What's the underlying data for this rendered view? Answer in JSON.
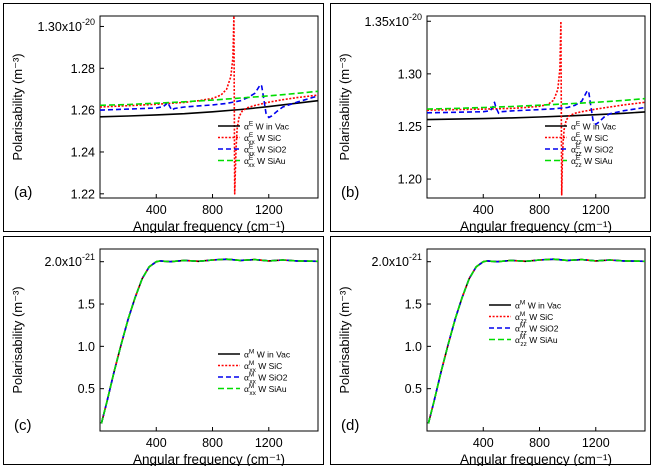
{
  "chart_data": [
    {
      "id": "a",
      "type": "line",
      "panel_label": "(a)",
      "title": "",
      "xlabel": "Angular frequency (cm⁻¹)",
      "ylabel": "Polarisability (m⁻³)",
      "xlim": [
        0,
        1550
      ],
      "ylim": [
        1.218,
        1.305
      ],
      "xticks": [
        400,
        800,
        1200
      ],
      "yticks": [
        {
          "v": 1.22,
          "label": "1.22"
        },
        {
          "v": 1.24,
          "label": "1.24"
        },
        {
          "v": 1.26,
          "label": "1.26"
        },
        {
          "v": 1.28,
          "label": "1.28"
        },
        {
          "v": 1.3,
          "label": "1.30x10",
          "exp": "-20"
        }
      ],
      "legend_position": "lower-right",
      "series": [
        {
          "name": "αᴱ W in Vac",
          "sym": "α",
          "sup": "E",
          "sub": "",
          "rest": " W in Vac",
          "color": "#000000",
          "dash": "",
          "width": 1.6,
          "x": [
            0,
            200,
            400,
            600,
            800,
            1000,
            1200,
            1400,
            1550
          ],
          "y": [
            1.2568,
            1.2572,
            1.2577,
            1.2583,
            1.2592,
            1.2603,
            1.2617,
            1.2633,
            1.2645
          ]
        },
        {
          "name": "αᴱxx W SiC",
          "sym": "α",
          "sup": "E",
          "sub": "xx",
          "rest": " W SiC",
          "color": "#ff0000",
          "dash": "2,1.6",
          "width": 1.6,
          "x": [
            0,
            200,
            400,
            600,
            700,
            800,
            860,
            900,
            930,
            945,
            952,
            958,
            962,
            968,
            975,
            990,
            1010,
            1050,
            1100,
            1200,
            1300,
            1400,
            1550
          ],
          "y": [
            1.2615,
            1.2621,
            1.2628,
            1.2637,
            1.2645,
            1.2656,
            1.2672,
            1.27,
            1.276,
            1.285,
            1.305,
            1.22,
            1.23,
            1.242,
            1.251,
            1.257,
            1.2595,
            1.2612,
            1.2622,
            1.2638,
            1.265,
            1.266,
            1.2672
          ]
        },
        {
          "name": "αᴱxx W SiO2",
          "sym": "α",
          "sup": "E",
          "sub": "xx",
          "rest": " W SiO2",
          "color": "#0000ee",
          "dash": "5,3",
          "width": 1.6,
          "x": [
            0,
            200,
            400,
            450,
            470,
            480,
            490,
            510,
            530,
            600,
            800,
            900,
            1000,
            1050,
            1100,
            1120,
            1140,
            1150,
            1165,
            1180,
            1200,
            1220,
            1260,
            1300,
            1400,
            1550
          ],
          "y": [
            1.26,
            1.2605,
            1.261,
            1.2617,
            1.2628,
            1.2638,
            1.2625,
            1.26,
            1.2608,
            1.2615,
            1.2625,
            1.2632,
            1.2645,
            1.266,
            1.268,
            1.27,
            1.2722,
            1.2715,
            1.265,
            1.2585,
            1.2565,
            1.2572,
            1.2595,
            1.2615,
            1.2638,
            1.2668
          ]
        },
        {
          "name": "αᴱxx W SiAu",
          "sym": "α",
          "sup": "E",
          "sub": "xx",
          "rest": " W SiAu",
          "color": "#00dd00",
          "dash": "6,3",
          "width": 1.6,
          "x": [
            0,
            200,
            400,
            600,
            800,
            1000,
            1200,
            1400,
            1550
          ],
          "y": [
            1.2623,
            1.2627,
            1.2633,
            1.264,
            1.2648,
            1.2658,
            1.2668,
            1.268,
            1.269
          ]
        }
      ]
    },
    {
      "id": "b",
      "type": "line",
      "panel_label": "(b)",
      "title": "",
      "xlabel": "Angular frequency (cm⁻¹)",
      "ylabel": "Polarisability (m⁻³)",
      "xlim": [
        0,
        1550
      ],
      "ylim": [
        1.182,
        1.355
      ],
      "xticks": [
        400,
        800,
        1200
      ],
      "yticks": [
        {
          "v": 1.2,
          "label": "1.20"
        },
        {
          "v": 1.25,
          "label": "1.25"
        },
        {
          "v": 1.3,
          "label": "1.30"
        },
        {
          "v": 1.35,
          "label": "1.35x10",
          "exp": "-20"
        }
      ],
      "legend_position": "lower-right",
      "series": [
        {
          "name": "αᴱ W in Vac",
          "sym": "α",
          "sup": "E",
          "sub": "",
          "rest": " W in Vac",
          "color": "#000000",
          "dash": "",
          "width": 1.6,
          "x": [
            0,
            200,
            400,
            600,
            800,
            1000,
            1200,
            1400,
            1550
          ],
          "y": [
            1.2565,
            1.257,
            1.2575,
            1.2581,
            1.259,
            1.26,
            1.2612,
            1.2625,
            1.2638
          ]
        },
        {
          "name": "αᴱzz W SiC",
          "sym": "α",
          "sup": "E",
          "sub": "zz",
          "rest": " W SiC",
          "color": "#ff0000",
          "dash": "2,1.6",
          "width": 1.6,
          "x": [
            0,
            200,
            400,
            600,
            700,
            800,
            860,
            900,
            930,
            945,
            952,
            958,
            962,
            968,
            975,
            990,
            1010,
            1050,
            1100,
            1200,
            1300,
            1400,
            1550
          ],
          "y": [
            1.2655,
            1.266,
            1.2665,
            1.2672,
            1.268,
            1.2692,
            1.271,
            1.275,
            1.285,
            1.305,
            1.35,
            1.185,
            1.215,
            1.235,
            1.247,
            1.256,
            1.26,
            1.2625,
            1.264,
            1.2665,
            1.2685,
            1.2705,
            1.273
          ]
        },
        {
          "name": "αᴱzz W SiO2",
          "sym": "α",
          "sup": "E",
          "sub": "zz",
          "rest": " W SiO2",
          "color": "#0000ee",
          "dash": "5,3",
          "width": 1.6,
          "x": [
            0,
            200,
            400,
            450,
            470,
            480,
            490,
            510,
            530,
            600,
            800,
            900,
            1000,
            1050,
            1100,
            1120,
            1140,
            1150,
            1165,
            1180,
            1200,
            1220,
            1260,
            1300,
            1400,
            1550
          ],
          "y": [
            1.263,
            1.2635,
            1.264,
            1.265,
            1.269,
            1.273,
            1.268,
            1.2625,
            1.264,
            1.2648,
            1.266,
            1.2668,
            1.268,
            1.27,
            1.274,
            1.279,
            1.284,
            1.283,
            1.269,
            1.256,
            1.252,
            1.254,
            1.259,
            1.262,
            1.265,
            1.268
          ]
        },
        {
          "name": "αᴱzz W SiAu",
          "sym": "α",
          "sup": "E",
          "sub": "zz",
          "rest": " W SiAu",
          "color": "#00dd00",
          "dash": "6,3",
          "width": 1.6,
          "x": [
            0,
            200,
            400,
            600,
            800,
            1000,
            1200,
            1400,
            1550
          ],
          "y": [
            1.2665,
            1.2672,
            1.268,
            1.269,
            1.2702,
            1.2715,
            1.273,
            1.2748,
            1.2765
          ]
        }
      ]
    },
    {
      "id": "c",
      "type": "line",
      "panel_label": "(c)",
      "title": "",
      "xlabel": "Angular frequency (cm⁻¹)",
      "ylabel": "Polarisability (m⁻³)",
      "xlim": [
        0,
        1550
      ],
      "ylim": [
        0.0,
        2.15
      ],
      "xticks": [
        400,
        800,
        1200
      ],
      "yticks": [
        {
          "v": 0.5,
          "label": "0.5"
        },
        {
          "v": 1.0,
          "label": "1.0"
        },
        {
          "v": 1.5,
          "label": "1.5"
        },
        {
          "v": 2.0,
          "label": "2.0x10",
          "exp": "-21"
        }
      ],
      "legend_position": "lower-right",
      "series": [
        {
          "name": "αᴹ W in Vac",
          "sym": "α",
          "sup": "M",
          "sub": "",
          "rest": " W in Vac",
          "color": "#000000",
          "dash": "",
          "width": 1.6,
          "x": [
            10,
            50,
            100,
            150,
            200,
            250,
            300,
            350,
            400,
            430,
            460,
            500,
            600,
            700,
            800,
            900,
            1000,
            1100,
            1200,
            1300,
            1400,
            1550
          ],
          "y": [
            0.09,
            0.35,
            0.7,
            1.02,
            1.32,
            1.58,
            1.8,
            1.94,
            2.0,
            2.01,
            2.005,
            2.0,
            2.015,
            2.005,
            2.02,
            2.03,
            2.015,
            2.025,
            2.01,
            2.02,
            2.01,
            2.005
          ]
        },
        {
          "name": "αᴹxx W SiC",
          "sym": "α",
          "sup": "M",
          "sub": "xx",
          "rest": " W SiC",
          "color": "#ff0000",
          "dash": "2,1.6",
          "width": 1.6,
          "x": [
            10,
            50,
            100,
            150,
            200,
            250,
            300,
            350,
            400,
            430,
            460,
            500,
            600,
            700,
            800,
            900,
            1000,
            1100,
            1200,
            1300,
            1400,
            1550
          ],
          "y": [
            0.09,
            0.35,
            0.7,
            1.02,
            1.32,
            1.58,
            1.8,
            1.94,
            2.0,
            2.01,
            2.005,
            2.0,
            2.015,
            2.005,
            2.02,
            2.03,
            2.015,
            2.025,
            2.01,
            2.02,
            2.01,
            2.005
          ]
        },
        {
          "name": "αᴹxx W SiO2",
          "sym": "α",
          "sup": "M",
          "sub": "xx",
          "rest": " W SiO2",
          "color": "#0000ee",
          "dash": "5,3",
          "width": 1.6,
          "x": [
            10,
            50,
            100,
            150,
            200,
            250,
            300,
            350,
            400,
            430,
            460,
            500,
            600,
            700,
            800,
            900,
            1000,
            1100,
            1200,
            1300,
            1400,
            1550
          ],
          "y": [
            0.09,
            0.35,
            0.7,
            1.02,
            1.32,
            1.58,
            1.8,
            1.94,
            2.0,
            2.01,
            2.005,
            2.0,
            2.015,
            2.005,
            2.02,
            2.03,
            2.015,
            2.025,
            2.01,
            2.02,
            2.01,
            2.005
          ]
        },
        {
          "name": "αᴹxx W SiAu",
          "sym": "α",
          "sup": "M",
          "sub": "xx",
          "rest": " W SiAu",
          "color": "#00dd00",
          "dash": "6,3",
          "width": 1.6,
          "x": [
            10,
            50,
            100,
            150,
            200,
            250,
            300,
            350,
            400,
            430,
            460,
            500,
            600,
            700,
            800,
            900,
            1000,
            1100,
            1200,
            1300,
            1400,
            1550
          ],
          "y": [
            0.09,
            0.35,
            0.7,
            1.02,
            1.32,
            1.58,
            1.8,
            1.94,
            2.0,
            2.01,
            2.005,
            2.0,
            2.015,
            2.005,
            2.02,
            2.03,
            2.015,
            2.025,
            2.01,
            2.02,
            2.01,
            2.005
          ]
        }
      ]
    },
    {
      "id": "d",
      "type": "line",
      "panel_label": "(d)",
      "title": "",
      "xlabel": "Angular frequency (cm⁻¹)",
      "ylabel": "Polarisability (m⁻³)",
      "xlim": [
        0,
        1550
      ],
      "ylim": [
        0.0,
        2.15
      ],
      "xticks": [
        400,
        800,
        1200
      ],
      "yticks": [
        {
          "v": 0.5,
          "label": "0.5"
        },
        {
          "v": 1.0,
          "label": "1.0"
        },
        {
          "v": 1.5,
          "label": "1.5"
        },
        {
          "v": 2.0,
          "label": "2.0x10",
          "exp": "-21"
        }
      ],
      "legend_position": "center-right",
      "series": [
        {
          "name": "αᴹ W in Vac",
          "sym": "α",
          "sup": "M",
          "sub": "",
          "rest": " W in Vac",
          "color": "#000000",
          "dash": "",
          "width": 1.6,
          "x": [
            10,
            50,
            100,
            150,
            200,
            250,
            300,
            350,
            400,
            430,
            460,
            500,
            600,
            700,
            800,
            900,
            1000,
            1100,
            1200,
            1300,
            1400,
            1550
          ],
          "y": [
            0.09,
            0.35,
            0.7,
            1.02,
            1.32,
            1.58,
            1.8,
            1.94,
            2.0,
            2.01,
            2.005,
            2.0,
            2.015,
            2.005,
            2.02,
            2.03,
            2.015,
            2.025,
            2.01,
            2.02,
            2.01,
            2.005
          ]
        },
        {
          "name": "αᴹzz W SiC",
          "sym": "α",
          "sup": "M",
          "sub": "zz",
          "rest": " W SiC",
          "color": "#ff0000",
          "dash": "2,1.6",
          "width": 1.6,
          "x": [
            10,
            50,
            100,
            150,
            200,
            250,
            300,
            350,
            400,
            430,
            460,
            500,
            600,
            700,
            800,
            900,
            1000,
            1100,
            1200,
            1300,
            1400,
            1550
          ],
          "y": [
            0.09,
            0.35,
            0.7,
            1.02,
            1.32,
            1.58,
            1.8,
            1.94,
            2.0,
            2.01,
            2.005,
            2.0,
            2.015,
            2.005,
            2.02,
            2.03,
            2.015,
            2.025,
            2.01,
            2.02,
            2.01,
            2.005
          ]
        },
        {
          "name": "αᴹzz W SiO2",
          "sym": "α",
          "sup": "M",
          "sub": "zz",
          "rest": " W SiO2",
          "color": "#0000ee",
          "dash": "5,3",
          "width": 1.6,
          "x": [
            10,
            50,
            100,
            150,
            200,
            250,
            300,
            350,
            400,
            430,
            460,
            500,
            600,
            700,
            800,
            900,
            1000,
            1100,
            1200,
            1300,
            1400,
            1550
          ],
          "y": [
            0.09,
            0.35,
            0.7,
            1.02,
            1.32,
            1.58,
            1.8,
            1.94,
            2.0,
            2.01,
            2.005,
            2.0,
            2.015,
            2.005,
            2.02,
            2.03,
            2.015,
            2.025,
            2.01,
            2.02,
            2.01,
            2.005
          ]
        },
        {
          "name": "αᴹzz W SiAu",
          "sym": "α",
          "sup": "M",
          "sub": "zz",
          "rest": " W SiAu",
          "color": "#00dd00",
          "dash": "6,3",
          "width": 1.6,
          "x": [
            10,
            50,
            100,
            150,
            200,
            250,
            300,
            350,
            400,
            430,
            460,
            500,
            600,
            700,
            800,
            900,
            1000,
            1100,
            1200,
            1300,
            1400,
            1550
          ],
          "y": [
            0.09,
            0.35,
            0.7,
            1.02,
            1.32,
            1.58,
            1.8,
            1.94,
            2.0,
            2.01,
            2.005,
            2.0,
            2.015,
            2.005,
            2.02,
            2.03,
            2.015,
            2.025,
            2.01,
            2.02,
            2.01,
            2.005
          ]
        }
      ]
    }
  ]
}
